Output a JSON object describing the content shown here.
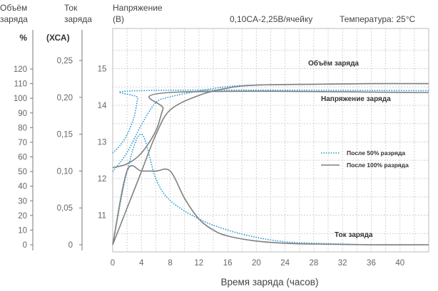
{
  "chart_data": {
    "type": "line",
    "header": {
      "capacity_label": [
        "Объём",
        "заряда"
      ],
      "current_label": [
        "Ток",
        "заряда"
      ],
      "voltage_label": [
        "Напряжение",
        "(В)"
      ],
      "condition": "0,10CA-2,25В/ячейку",
      "temperature": "Температура: 25°C"
    },
    "xlabel": "Время заряда (часов)",
    "x_ticks": [
      0,
      4,
      8,
      12,
      16,
      20,
      24,
      28,
      32,
      36,
      40
    ],
    "xlim": [
      0,
      44
    ],
    "axes": {
      "capacity": {
        "unit": "%",
        "ticks": [
          0,
          10,
          20,
          30,
          40,
          50,
          60,
          70,
          80,
          90,
          100,
          110,
          120
        ],
        "range": [
          0,
          120
        ]
      },
      "current": {
        "unit": "(ХСА)",
        "ticks": [
          "0",
          "0,05",
          "0,10",
          "0,15",
          "0,20",
          "0,25"
        ],
        "range": [
          0,
          0.25
        ]
      },
      "voltage": {
        "ticks": [
          11,
          12,
          13,
          14,
          15
        ],
        "range": [
          10,
          16
        ]
      }
    },
    "annotations": {
      "capacity": "Объём заряда",
      "voltage": "Напряжение заряда",
      "current": "Ток заряда"
    },
    "legend": [
      {
        "name": "После 50% разряда",
        "style": "dotted",
        "color": "#2b9bd1"
      },
      {
        "name": "После 100% разряда",
        "style": "solid",
        "color": "#808080"
      }
    ],
    "series": [
      {
        "name": "После 50% разряда",
        "quantity": "capacity",
        "axis": "capacity",
        "x": [
          0,
          2,
          4,
          6,
          8,
          12,
          16,
          20,
          28,
          36,
          44
        ],
        "values": [
          50,
          63,
          82,
          97,
          101,
          105,
          108,
          109,
          109.6,
          110,
          110
        ]
      },
      {
        "name": "После 50% разряда",
        "quantity": "voltage",
        "axis": "voltage",
        "x": [
          0,
          1,
          2,
          3,
          3.5,
          4,
          44
        ],
        "values": [
          12.7,
          12.9,
          13.2,
          13.7,
          14.2,
          14.4,
          14.4
        ]
      },
      {
        "name": "После 50% разряда",
        "quantity": "current",
        "axis": "current",
        "x": [
          0,
          2,
          4,
          6,
          8,
          12,
          16,
          20,
          24,
          28,
          32,
          36,
          44
        ],
        "values": [
          0,
          0.1,
          0.15,
          0.09,
          0.06,
          0.035,
          0.02,
          0.01,
          0.004,
          0.002,
          0.001,
          0,
          0
        ]
      },
      {
        "name": "После 100% разряда",
        "quantity": "capacity",
        "axis": "capacity",
        "x": [
          0,
          2,
          4,
          6,
          8,
          12,
          16,
          20,
          28,
          36,
          44
        ],
        "values": [
          0,
          25,
          50,
          75,
          92,
          102,
          107,
          109,
          109.6,
          110,
          110
        ]
      },
      {
        "name": "После 100% разряда",
        "quantity": "voltage",
        "axis": "voltage",
        "x": [
          0,
          2,
          4,
          6,
          7,
          8,
          44
        ],
        "values": [
          12.3,
          12.4,
          12.7,
          13.3,
          13.9,
          14.35,
          14.35
        ]
      },
      {
        "name": "После 100% разряда",
        "quantity": "current",
        "axis": "current",
        "x": [
          0,
          2,
          4,
          6,
          8,
          10,
          12,
          14,
          16,
          20,
          24,
          28,
          36,
          44
        ],
        "values": [
          0,
          0.1,
          0.1,
          0.1,
          0.1,
          0.063,
          0.035,
          0.02,
          0.012,
          0.005,
          0.002,
          0.001,
          0,
          0
        ]
      }
    ]
  }
}
